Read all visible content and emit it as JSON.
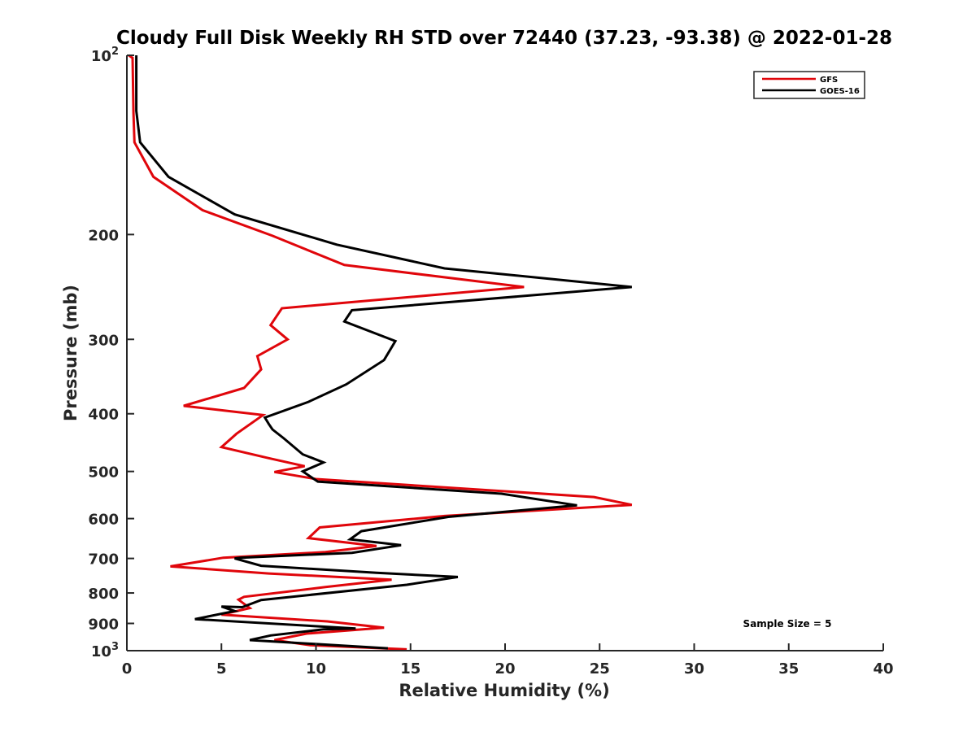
{
  "chart_data": {
    "type": "line",
    "title": "Cloudy Full Disk Weekly RH STD over 72440 (37.23, -93.38) @ 2022-01-28",
    "xlabel": "Relative Humidity (%)",
    "ylabel": "Pressure (mb)",
    "xlim": [
      0,
      40
    ],
    "ylim": [
      100,
      1000
    ],
    "y_scale": "log",
    "y_reversed": true,
    "grid": false,
    "legend_position": "top-right",
    "x_ticks": [
      "0",
      "5",
      "10",
      "15",
      "20",
      "25",
      "30",
      "35",
      "40"
    ],
    "y_ticks": [
      {
        "value": 100,
        "label": "10",
        "sup": "2"
      },
      {
        "value": 200,
        "label": "200",
        "sup": ""
      },
      {
        "value": 300,
        "label": "300",
        "sup": ""
      },
      {
        "value": 400,
        "label": "400",
        "sup": ""
      },
      {
        "value": 500,
        "label": "500",
        "sup": ""
      },
      {
        "value": 600,
        "label": "600",
        "sup": ""
      },
      {
        "value": 700,
        "label": "700",
        "sup": ""
      },
      {
        "value": 800,
        "label": "800",
        "sup": ""
      },
      {
        "value": 900,
        "label": "900",
        "sup": ""
      },
      {
        "value": 1000,
        "label": "10",
        "sup": "3"
      }
    ],
    "series": [
      {
        "name": "GFS",
        "color": "#e0060b",
        "points": [
          [
            0.1,
            100
          ],
          [
            0.3,
            101
          ],
          [
            0.35,
            125
          ],
          [
            0.4,
            140
          ],
          [
            1.4,
            160
          ],
          [
            4.0,
            182
          ],
          [
            7.7,
            201
          ],
          [
            11.5,
            225
          ],
          [
            21.0,
            245
          ],
          [
            8.2,
            266
          ],
          [
            7.6,
            284
          ],
          [
            8.5,
            300
          ],
          [
            6.9,
            320
          ],
          [
            7.1,
            337
          ],
          [
            6.2,
            362
          ],
          [
            3.0,
            388
          ],
          [
            7.2,
            402
          ],
          [
            5.8,
            432
          ],
          [
            5.0,
            455
          ],
          [
            7.5,
            475
          ],
          [
            9.4,
            490
          ],
          [
            7.8,
            501
          ],
          [
            10.0,
            515
          ],
          [
            24.7,
            552
          ],
          [
            26.7,
            569
          ],
          [
            16.8,
            594
          ],
          [
            10.2,
            621
          ],
          [
            9.6,
            647
          ],
          [
            13.2,
            667
          ],
          [
            10.5,
            683
          ],
          [
            5.1,
            698
          ],
          [
            2.3,
            722
          ],
          [
            7.5,
            742
          ],
          [
            14.0,
            760
          ],
          [
            10.5,
            782
          ],
          [
            6.2,
            812
          ],
          [
            5.9,
            821
          ],
          [
            6.5,
            848
          ],
          [
            5.0,
            870
          ],
          [
            10.6,
            893
          ],
          [
            13.6,
            915
          ],
          [
            9.5,
            936
          ],
          [
            7.8,
            960
          ],
          [
            9.7,
            979
          ],
          [
            14.8,
            995
          ]
        ]
      },
      {
        "name": "GOES-16",
        "color": "#000000",
        "points": [
          [
            0.5,
            100
          ],
          [
            0.5,
            124
          ],
          [
            0.7,
            140
          ],
          [
            2.2,
            160
          ],
          [
            5.7,
            185
          ],
          [
            11.1,
            208
          ],
          [
            16.8,
            228
          ],
          [
            26.7,
            245
          ],
          [
            11.9,
            268
          ],
          [
            11.5,
            280
          ],
          [
            14.2,
            302
          ],
          [
            13.6,
            325
          ],
          [
            11.6,
            357
          ],
          [
            9.6,
            382
          ],
          [
            7.3,
            406
          ],
          [
            7.5,
            416
          ],
          [
            7.7,
            425
          ],
          [
            8.3,
            440
          ],
          [
            9.3,
            468
          ],
          [
            10.4,
            483
          ],
          [
            9.3,
            500
          ],
          [
            10.1,
            520
          ],
          [
            19.8,
            545
          ],
          [
            23.8,
            570
          ],
          [
            17.0,
            596
          ],
          [
            12.4,
            630
          ],
          [
            11.8,
            650
          ],
          [
            14.5,
            665
          ],
          [
            11.9,
            685
          ],
          [
            6.0,
            698
          ],
          [
            5.7,
            700
          ],
          [
            7.1,
            720
          ],
          [
            13.2,
            740
          ],
          [
            17.5,
            752
          ],
          [
            14.8,
            775
          ],
          [
            7.1,
            822
          ],
          [
            6.1,
            845
          ],
          [
            5.0,
            843
          ],
          [
            5.7,
            858
          ],
          [
            3.6,
            885
          ],
          [
            12.1,
            918
          ],
          [
            10.4,
            921
          ],
          [
            7.6,
            943
          ],
          [
            6.5,
            960
          ],
          [
            13.8,
            991
          ]
        ]
      }
    ],
    "annotation": "Sample Size = 5"
  }
}
